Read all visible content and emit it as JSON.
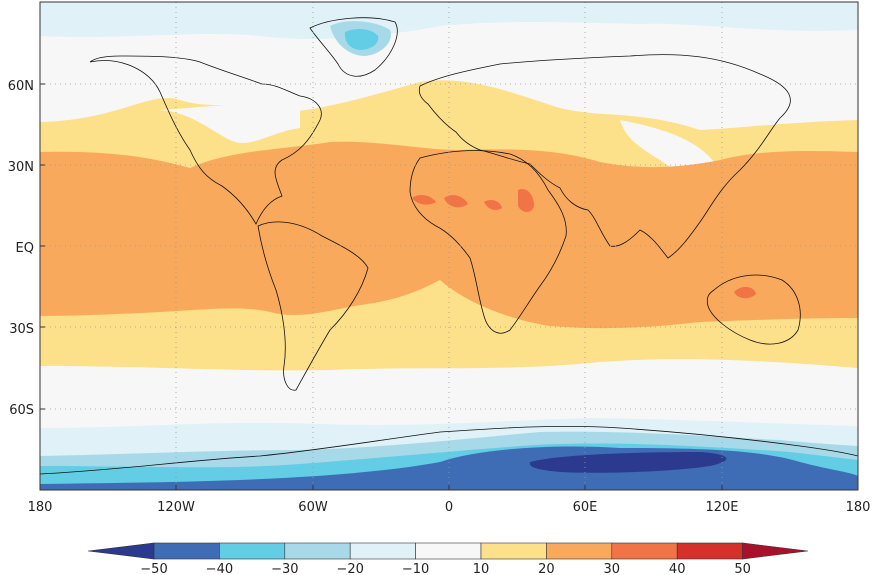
{
  "map": {
    "lat_labels": [
      "60N",
      "30N",
      "EQ",
      "30S",
      "60S"
    ],
    "lon_labels": [
      "180",
      "120W",
      "60W",
      "0",
      "60E",
      "120E",
      "180"
    ],
    "grid": "dotted"
  },
  "colorbar": {
    "labels": [
      "-50",
      "-40",
      "-30",
      "-20",
      "-10",
      "10",
      "20",
      "30",
      "40",
      "50"
    ],
    "colors": [
      "#2b3a8f",
      "#3e6db5",
      "#62cde5",
      "#a8d9e8",
      "#e0f1f7",
      "#f7f7f7",
      "#fde08a",
      "#f9a95c",
      "#f07446",
      "#d5302a",
      "#a8102b"
    ],
    "extend": "both"
  },
  "bands": [
    {
      "range": "< -50",
      "color": "#2b3a8f"
    },
    {
      "range": "-50 to -40",
      "color": "#3e6db5"
    },
    {
      "range": "-40 to -30",
      "color": "#62cde5"
    },
    {
      "range": "-30 to -20",
      "color": "#a8d9e8"
    },
    {
      "range": "-20 to -10",
      "color": "#e0f1f7"
    },
    {
      "range": "-10 to 10",
      "color": "#f7f7f7"
    },
    {
      "range": "10 to 20",
      "color": "#fde08a"
    },
    {
      "range": "20 to 30",
      "color": "#f9a95c"
    },
    {
      "range": "30 to 40",
      "color": "#f07446"
    }
  ]
}
